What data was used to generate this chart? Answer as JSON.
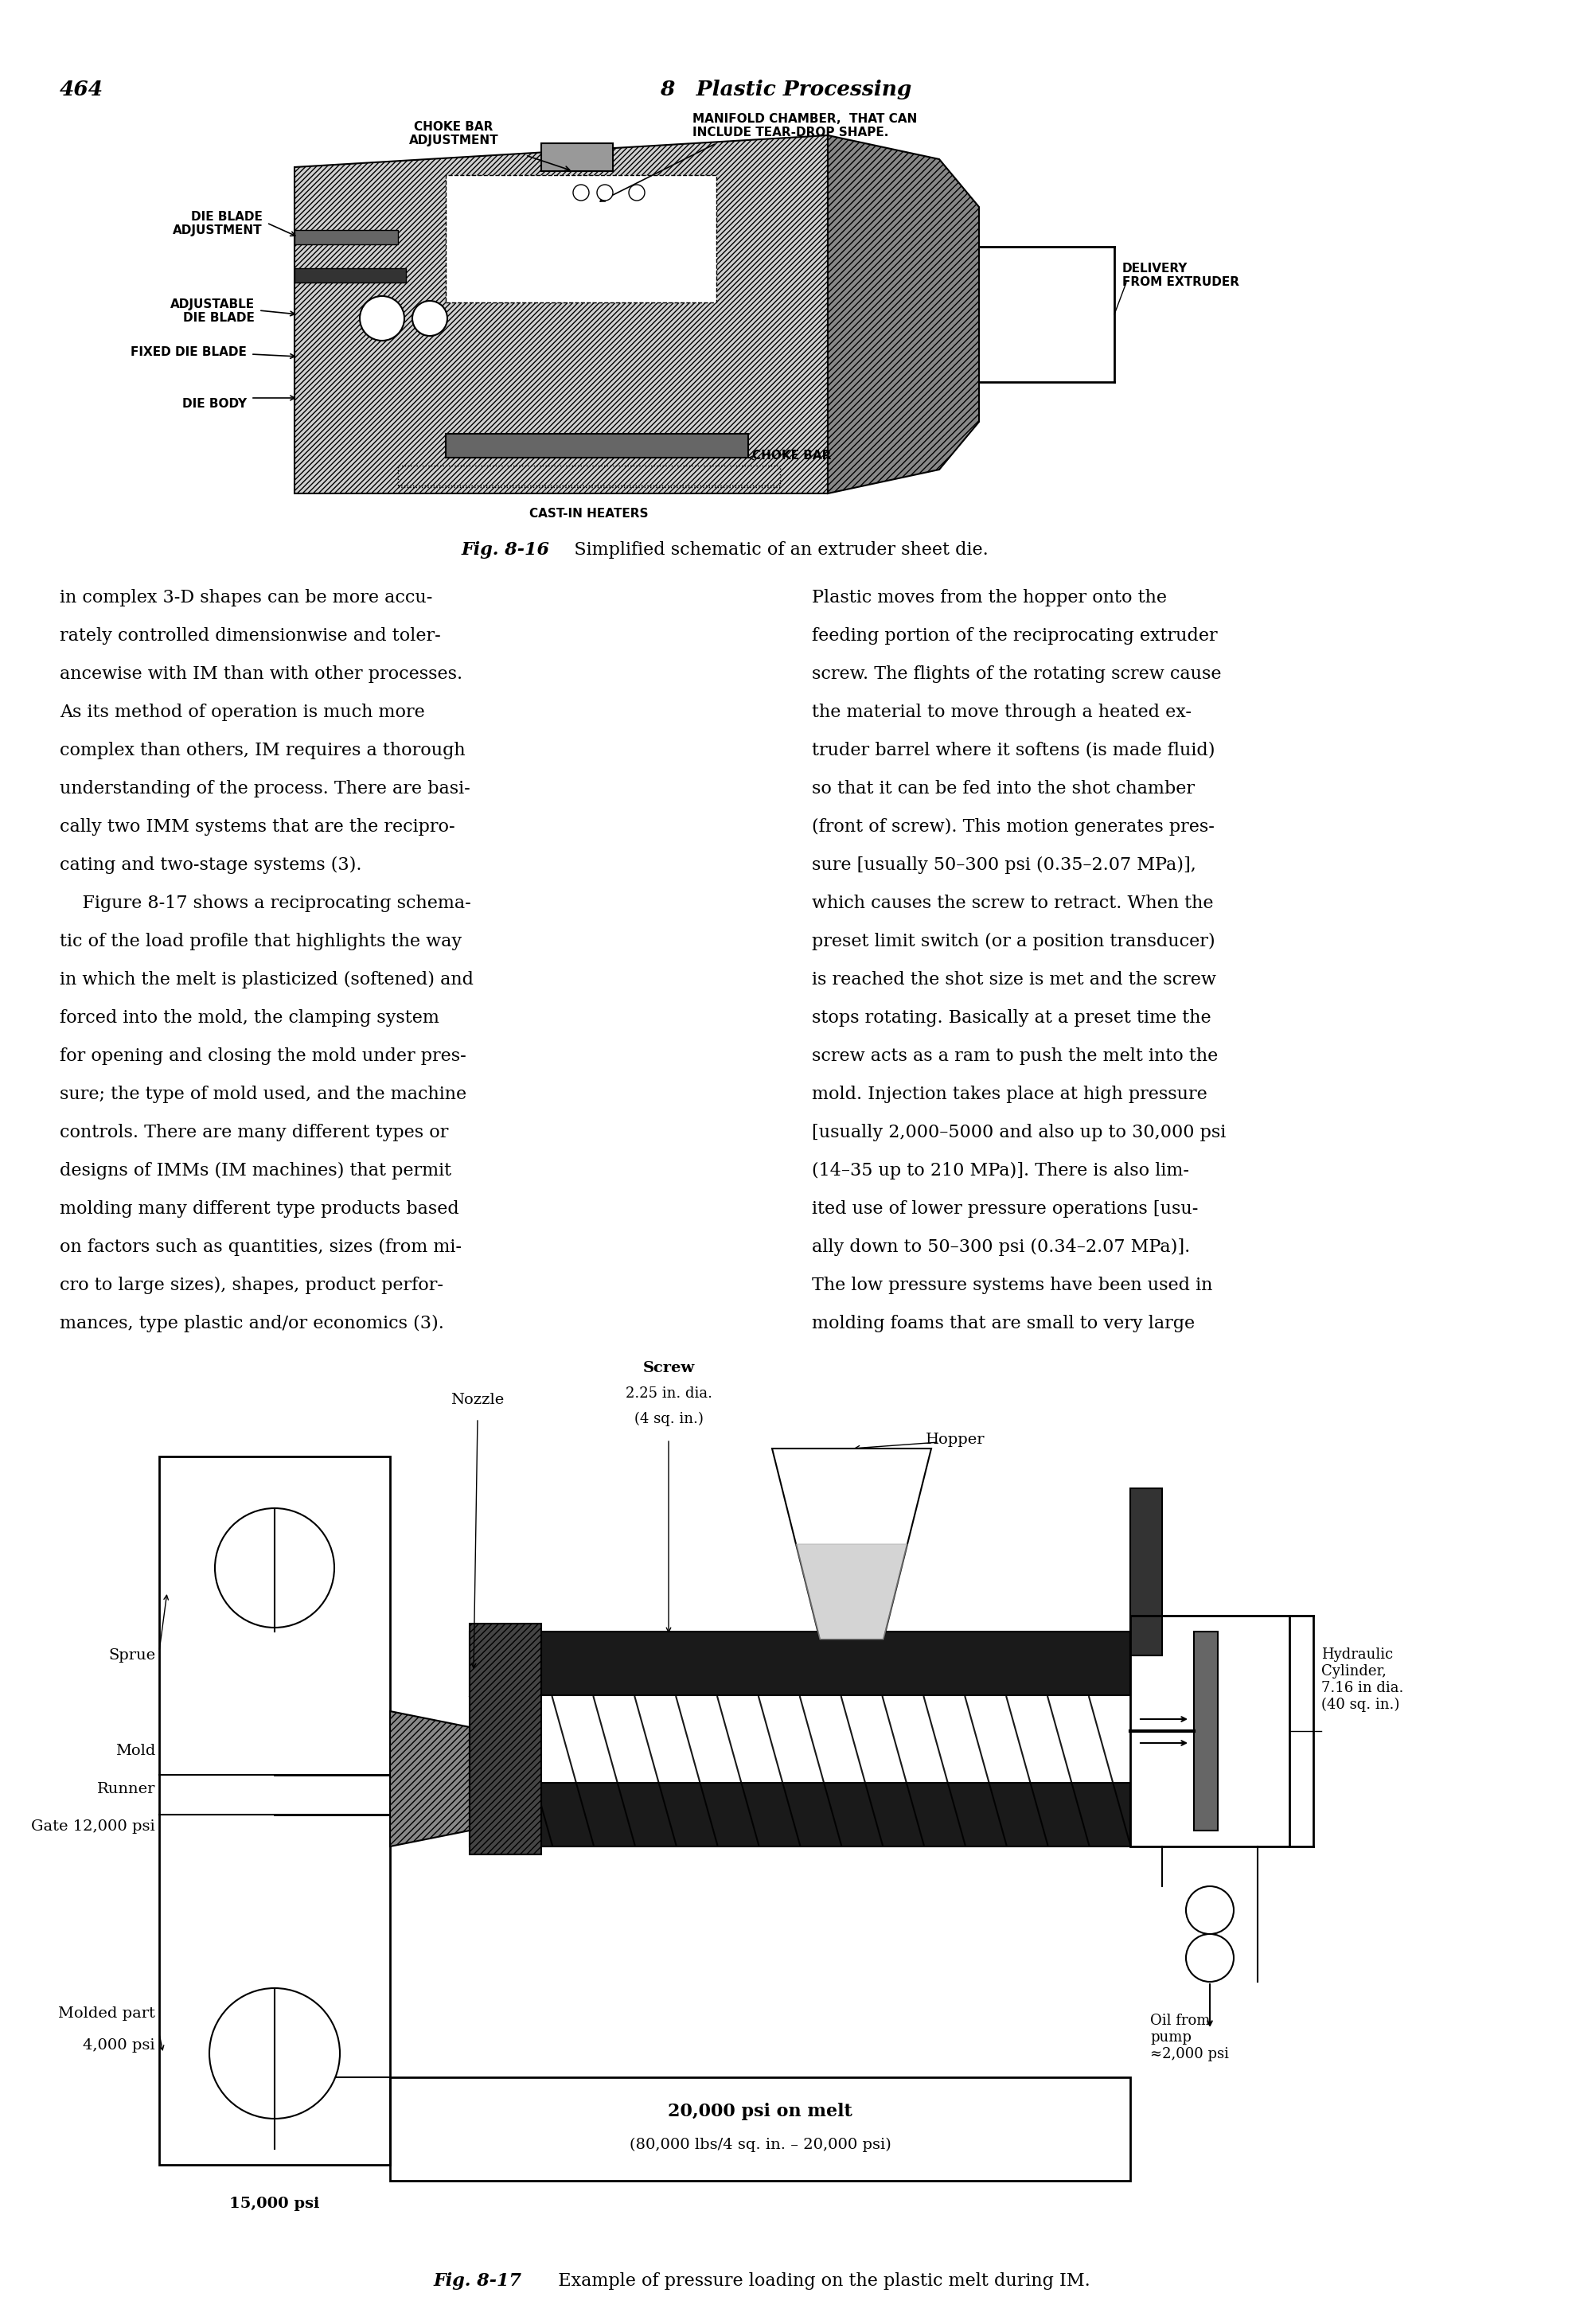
{
  "page_number": "464",
  "chapter_header": "8   Plastic Processing",
  "fig16_caption_bold": "Fig. 8-16",
  "fig16_caption_rest": "   Simplified schematic of an extruder sheet die.",
  "fig17_caption_bold": "Fig. 8-17",
  "fig17_caption_rest": "   Example of pressure loading on the plastic melt during IM.",
  "body_text_left": [
    "in complex 3-D shapes can be more accu-",
    "rately controlled dimensionwise and toler-",
    "ancewise with IM than with other processes.",
    "As its method of operation is much more",
    "complex than others, IM requires a thorough",
    "understanding of the process. There are basi-",
    "cally two IMM systems that are the recipro-",
    "cating and two-stage systems (3).",
    "    Figure 8-17 shows a reciprocating schema-",
    "tic of the load profile that highlights the way",
    "in which the melt is plasticized (softened) and",
    "forced into the mold, the clamping system",
    "for opening and closing the mold under pres-",
    "sure; the type of mold used, and the machine",
    "controls. There are many different types or",
    "designs of IMMs (IM machines) that permit",
    "molding many different type products based",
    "on factors such as quantities, sizes (from mi-",
    "cro to large sizes), shapes, product perfor-",
    "mances, type plastic and/or economics (3)."
  ],
  "body_text_right": [
    "Plastic moves from the hopper onto the",
    "feeding portion of the reciprocating extruder",
    "screw. The flights of the rotating screw cause",
    "the material to move through a heated ex-",
    "truder barrel where it softens (is made fluid)",
    "so that it can be fed into the shot chamber",
    "(front of screw). This motion generates pres-",
    "sure [usually 50–300 psi (0.35–2.07 MPa)],",
    "which causes the screw to retract. When the",
    "preset limit switch (or a position transducer)",
    "is reached the shot size is met and the screw",
    "stops rotating. Basically at a preset time the",
    "screw acts as a ram to push the melt into the",
    "mold. Injection takes place at high pressure",
    "[usually 2,000–5000 and also up to 30,000 psi",
    "(14–35 up to 210 MPa)]. There is also lim-",
    "ited use of lower pressure operations [usu-",
    "ally down to 50–300 psi (0.34–2.07 MPa)].",
    "The low pressure systems have been used in",
    "molding foams that are small to very large"
  ],
  "background_color": "#ffffff"
}
